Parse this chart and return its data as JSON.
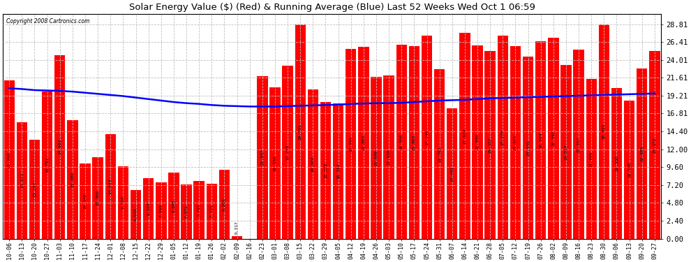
{
  "title": "Solar Energy Value ($) (Red) & Running Average (Blue) Last 52 Weeks Wed Oct 1 06:59",
  "copyright": "Copyright 2008 Cartronics.com",
  "bar_color": "#ff0000",
  "line_color": "#0000ff",
  "background_color": "#ffffff",
  "plot_background": "#ffffff",
  "yticks": [
    0.0,
    2.4,
    4.8,
    7.2,
    9.6,
    12.0,
    14.4,
    16.81,
    19.21,
    21.61,
    24.01,
    26.41,
    28.81
  ],
  "ylim": [
    0.0,
    30.2
  ],
  "categories": [
    "10-06",
    "10-13",
    "10-20",
    "10-27",
    "11-03",
    "11-10",
    "11-17",
    "11-24",
    "12-01",
    "12-08",
    "12-15",
    "12-22",
    "12-29",
    "01-05",
    "01-12",
    "01-19",
    "01-26",
    "02-02",
    "02-09",
    "02-16",
    "02-23",
    "03-01",
    "03-08",
    "03-15",
    "03-22",
    "03-29",
    "04-05",
    "04-12",
    "04-19",
    "04-26",
    "05-03",
    "05-10",
    "05-17",
    "05-24",
    "05-31",
    "06-07",
    "06-14",
    "06-21",
    "06-28",
    "07-05",
    "07-12",
    "07-19",
    "07-26",
    "08-02",
    "08-09",
    "08-16",
    "08-23",
    "08-30",
    "09-06",
    "09-13",
    "09-20",
    "09-27"
  ],
  "bar_values": [
    21.262,
    15.672,
    13.247,
    19.782,
    24.682,
    15.888,
    10.14,
    10.96,
    14.044,
    9.724,
    6.543,
    8.164,
    7.599,
    8.845,
    7.271,
    7.765,
    7.421,
    9.265,
    0.317,
    0.0,
    21.847,
    20.338,
    23.248,
    28.731,
    20.004,
    18.378,
    18.182,
    25.506,
    25.803,
    21.698,
    21.928,
    26.0,
    25.863,
    27.246,
    22.763,
    17.492,
    27.63,
    25.999,
    25.157,
    27.27,
    25.825,
    24.441,
    26.504,
    26.992,
    23.317,
    25.357,
    21.406,
    28.809,
    20.186,
    18.52,
    22.889,
    25.172
  ],
  "running_avg": [
    20.2,
    20.1,
    19.95,
    19.9,
    19.85,
    19.75,
    19.6,
    19.45,
    19.3,
    19.15,
    18.95,
    18.75,
    18.55,
    18.35,
    18.2,
    18.1,
    17.95,
    17.85,
    17.8,
    17.75,
    17.75,
    17.75,
    17.8,
    17.85,
    17.9,
    17.95,
    18.0,
    18.1,
    18.15,
    18.2,
    18.2,
    18.25,
    18.35,
    18.45,
    18.55,
    18.6,
    18.65,
    18.75,
    18.85,
    18.9,
    18.95,
    19.0,
    19.05,
    19.1,
    19.15,
    19.2,
    19.25,
    19.3,
    19.35,
    19.4,
    19.45,
    19.5
  ]
}
